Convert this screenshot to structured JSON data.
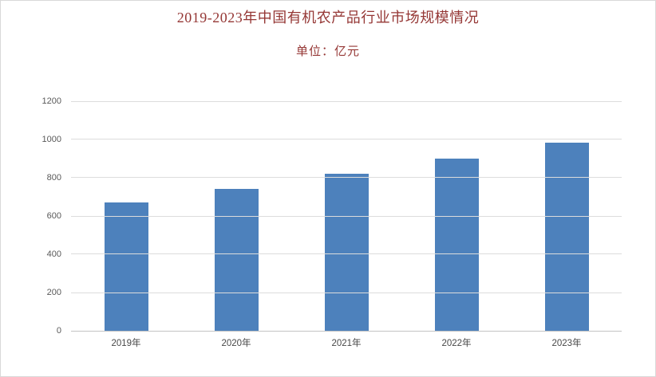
{
  "header": {
    "title": "2019-2023年中国有机农产品行业市场规模情况",
    "subtitle": "单位：亿元"
  },
  "colors": {
    "bar": "#4d81bc",
    "title_text": "#953735",
    "gridline": "#dcdcdc",
    "axis_line": "#c3c3c3",
    "ytick_text": "#595959",
    "xlabel_text": "#474747",
    "frame_border": "#d9d9d9",
    "background": "#ffffff"
  },
  "chart_data": {
    "type": "bar",
    "title": "2019-2023年中国有机农产品行业市场规模情况",
    "subtitle": "单位：亿元",
    "xlabel": "",
    "ylabel": "亿元",
    "categories": [
      "2019年",
      "2020年",
      "2021年",
      "2022年",
      "2023年"
    ],
    "values": [
      670,
      740,
      820,
      900,
      985
    ],
    "ylim": [
      0,
      1200
    ],
    "yticks": [
      0,
      200,
      400,
      600,
      800,
      1000,
      1200
    ],
    "grid": true,
    "legend": false,
    "bar_color": "#4d81bc"
  }
}
